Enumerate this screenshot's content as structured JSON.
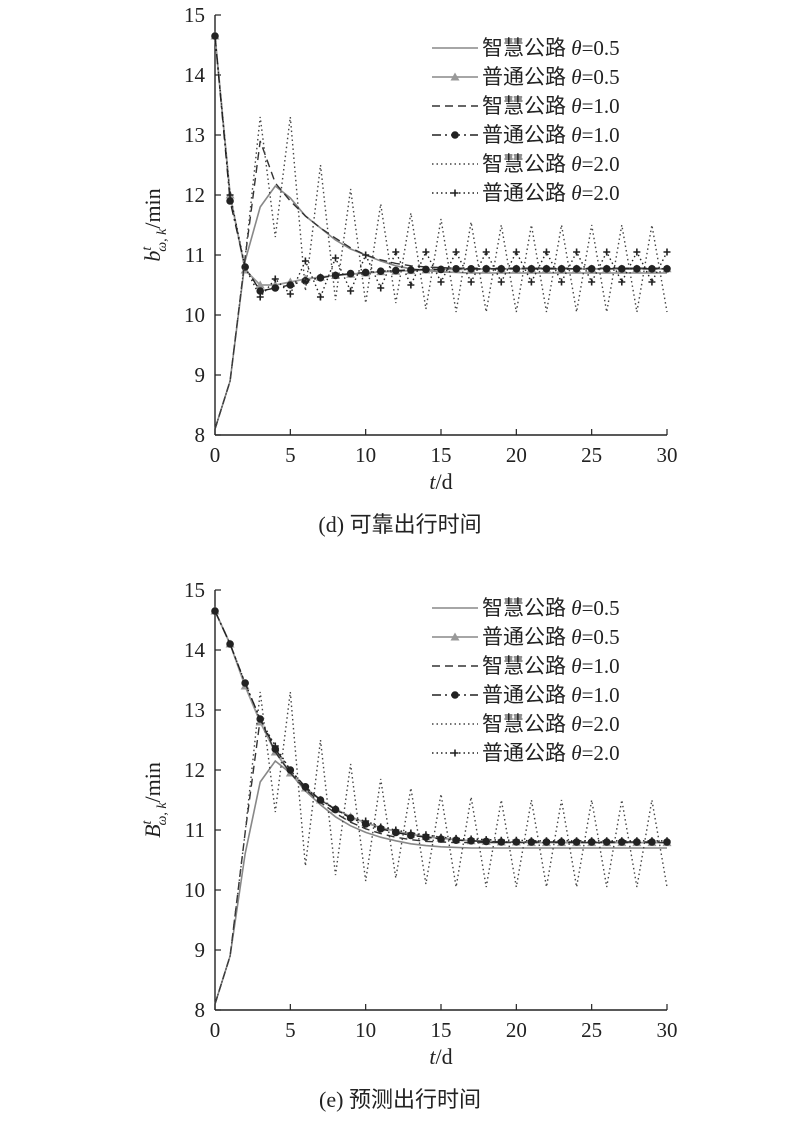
{
  "chart_data": [
    {
      "type": "line",
      "caption": "(d) 可靠出行时间",
      "xlabel": "t/d",
      "ylabel": "b^t_{ω,k}/min",
      "ylabel_parts": {
        "base": "b",
        "sup": "t",
        "sub": "ω, k",
        "unit": "/min"
      },
      "xlim": [
        0,
        30
      ],
      "ylim": [
        8,
        15
      ],
      "xticks": [
        0,
        5,
        10,
        15,
        20,
        25,
        30
      ],
      "yticks": [
        8,
        9,
        10,
        11,
        12,
        13,
        14,
        15
      ],
      "legend_position": "top-right",
      "x": [
        0,
        1,
        2,
        3,
        4,
        5,
        6,
        7,
        8,
        9,
        10,
        11,
        12,
        13,
        14,
        15,
        16,
        17,
        18,
        19,
        20,
        21,
        22,
        23,
        24,
        25,
        26,
        27,
        28,
        29,
        30
      ],
      "series": [
        {
          "name": "智慧公路 θ=0.5",
          "style": "solid",
          "color": "#888888",
          "values": [
            8.1,
            8.9,
            10.9,
            11.8,
            12.15,
            11.95,
            11.65,
            11.45,
            11.25,
            11.1,
            11.0,
            10.9,
            10.82,
            10.77,
            10.74,
            10.72,
            10.71,
            10.7,
            10.7,
            10.7,
            10.7,
            10.7,
            10.7,
            10.7,
            10.7,
            10.7,
            10.7,
            10.7,
            10.7,
            10.7,
            10.7
          ]
        },
        {
          "name": "普通公路 θ=0.5",
          "style": "solid-triangle",
          "color": "#999999",
          "values": [
            14.65,
            12.0,
            10.75,
            10.5,
            10.5,
            10.55,
            10.6,
            10.63,
            10.66,
            10.68,
            10.7,
            10.72,
            10.73,
            10.74,
            10.75,
            10.76,
            10.76,
            10.76,
            10.77,
            10.77,
            10.77,
            10.77,
            10.77,
            10.77,
            10.77,
            10.77,
            10.77,
            10.77,
            10.77,
            10.77,
            10.77
          ]
        },
        {
          "name": "智慧公路 θ=1.0",
          "style": "dashed",
          "color": "#333333",
          "values": [
            8.1,
            8.9,
            10.95,
            12.9,
            12.2,
            11.9,
            11.65,
            11.45,
            11.28,
            11.12,
            11.0,
            10.92,
            10.86,
            10.82,
            10.8,
            10.79,
            10.78,
            10.78,
            10.78,
            10.78,
            10.78,
            10.78,
            10.78,
            10.78,
            10.78,
            10.78,
            10.78,
            10.78,
            10.78,
            10.78,
            10.78
          ]
        },
        {
          "name": "普通公路 θ=1.0",
          "style": "dashdot-dot",
          "color": "#222222",
          "values": [
            14.65,
            11.9,
            10.8,
            10.4,
            10.45,
            10.5,
            10.57,
            10.62,
            10.66,
            10.69,
            10.71,
            10.73,
            10.74,
            10.75,
            10.76,
            10.76,
            10.77,
            10.77,
            10.77,
            10.77,
            10.77,
            10.77,
            10.77,
            10.77,
            10.77,
            10.77,
            10.77,
            10.77,
            10.77,
            10.77,
            10.77
          ]
        },
        {
          "name": "智慧公路 θ=2.0",
          "style": "dotted",
          "color": "#444444",
          "values": [
            8.1,
            8.9,
            10.95,
            13.3,
            11.3,
            13.3,
            10.4,
            12.5,
            10.25,
            12.1,
            10.2,
            11.85,
            10.2,
            11.7,
            10.1,
            11.6,
            10.05,
            11.55,
            10.05,
            11.5,
            10.05,
            11.5,
            10.05,
            11.5,
            10.05,
            11.5,
            10.05,
            11.5,
            10.05,
            11.5,
            10.05
          ]
        },
        {
          "name": "普通公路 θ=2.0",
          "style": "dotted-plus",
          "color": "#222222",
          "values": [
            14.65,
            12.0,
            10.8,
            10.3,
            10.6,
            10.35,
            10.9,
            10.3,
            10.95,
            10.4,
            11.0,
            10.45,
            11.05,
            10.5,
            11.05,
            10.55,
            11.05,
            10.55,
            11.05,
            10.55,
            11.05,
            10.55,
            11.05,
            10.55,
            11.05,
            10.55,
            11.05,
            10.55,
            11.05,
            10.55,
            11.05
          ]
        }
      ]
    },
    {
      "type": "line",
      "caption": "(e) 预测出行时间",
      "xlabel": "t/d",
      "ylabel": "B^t_{ω,k}/min",
      "ylabel_parts": {
        "base": "B",
        "sup": "t",
        "sub": "ω, k",
        "unit": "/min"
      },
      "xlim": [
        0,
        30
      ],
      "ylim": [
        8,
        15
      ],
      "xticks": [
        0,
        5,
        10,
        15,
        20,
        25,
        30
      ],
      "yticks": [
        8,
        9,
        10,
        11,
        12,
        13,
        14,
        15
      ],
      "legend_position": "top-right",
      "x": [
        0,
        1,
        2,
        3,
        4,
        5,
        6,
        7,
        8,
        9,
        10,
        11,
        12,
        13,
        14,
        15,
        16,
        17,
        18,
        19,
        20,
        21,
        22,
        23,
        24,
        25,
        26,
        27,
        28,
        29,
        30
      ],
      "series": [
        {
          "name": "智慧公路 θ=0.5",
          "style": "solid",
          "color": "#888888",
          "values": [
            8.1,
            8.9,
            10.6,
            11.8,
            12.15,
            11.95,
            11.65,
            11.42,
            11.22,
            11.07,
            10.96,
            10.88,
            10.82,
            10.77,
            10.74,
            10.72,
            10.71,
            10.7,
            10.7,
            10.7,
            10.7,
            10.7,
            10.7,
            10.7,
            10.7,
            10.7,
            10.7,
            10.7,
            10.7,
            10.7,
            10.7
          ]
        },
        {
          "name": "普通公路 θ=0.5",
          "style": "solid-triangle",
          "color": "#999999",
          "values": [
            14.65,
            14.1,
            13.4,
            12.8,
            12.3,
            11.95,
            11.7,
            11.5,
            11.35,
            11.22,
            11.12,
            11.04,
            10.98,
            10.93,
            10.89,
            10.86,
            10.84,
            10.82,
            10.81,
            10.8,
            10.8,
            10.79,
            10.79,
            10.79,
            10.79,
            10.79,
            10.79,
            10.79,
            10.79,
            10.79,
            10.79
          ]
        },
        {
          "name": "智慧公路 θ=1.0",
          "style": "dashed",
          "color": "#333333",
          "values": [
            8.1,
            8.9,
            10.95,
            12.85,
            12.3,
            11.95,
            11.68,
            11.46,
            11.28,
            11.13,
            11.02,
            10.94,
            10.88,
            10.84,
            10.81,
            10.8,
            10.79,
            10.79,
            10.79,
            10.79,
            10.79,
            10.79,
            10.79,
            10.79,
            10.79,
            10.79,
            10.79,
            10.79,
            10.79,
            10.79,
            10.79
          ]
        },
        {
          "name": "普通公路 θ=1.0",
          "style": "dashdot-dot",
          "color": "#222222",
          "values": [
            14.65,
            14.1,
            13.45,
            12.85,
            12.35,
            12.0,
            11.72,
            11.5,
            11.34,
            11.2,
            11.1,
            11.02,
            10.96,
            10.91,
            10.88,
            10.85,
            10.83,
            10.82,
            10.81,
            10.8,
            10.8,
            10.8,
            10.8,
            10.8,
            10.8,
            10.8,
            10.8,
            10.8,
            10.8,
            10.8,
            10.8
          ]
        },
        {
          "name": "智慧公路 θ=2.0",
          "style": "dotted",
          "color": "#444444",
          "values": [
            8.1,
            8.9,
            10.95,
            13.3,
            11.3,
            13.3,
            10.4,
            12.5,
            10.25,
            12.1,
            10.15,
            11.85,
            10.2,
            11.7,
            10.1,
            11.6,
            10.05,
            11.55,
            10.05,
            11.5,
            10.05,
            11.5,
            10.05,
            11.5,
            10.05,
            11.5,
            10.05,
            11.5,
            10.05,
            11.5,
            10.05
          ]
        },
        {
          "name": "普通公路 θ=2.0",
          "style": "dotted-plus",
          "color": "#222222",
          "values": [
            14.65,
            14.1,
            13.45,
            12.85,
            12.4,
            12.0,
            11.7,
            11.5,
            11.35,
            11.2,
            11.15,
            11.05,
            11.0,
            10.95,
            10.92,
            10.88,
            10.86,
            10.85,
            10.84,
            10.83,
            10.83,
            10.82,
            10.82,
            10.82,
            10.82,
            10.82,
            10.82,
            10.82,
            10.82,
            10.82,
            10.82
          ]
        }
      ]
    }
  ]
}
